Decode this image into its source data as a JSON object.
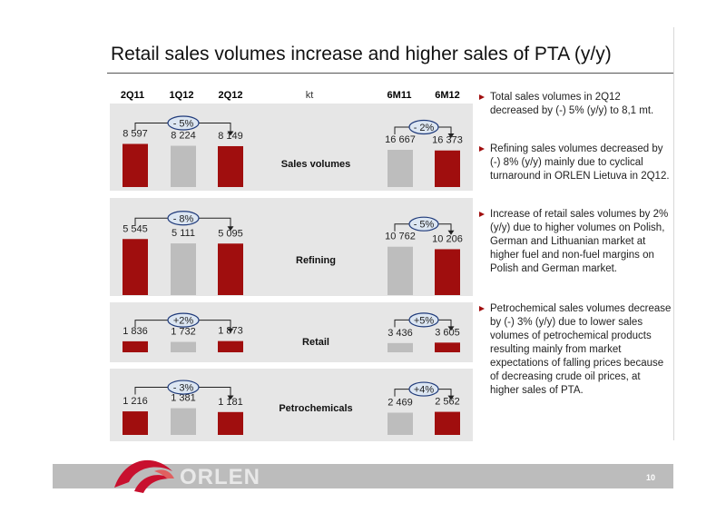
{
  "title": "Retail sales volumes increase and higher sales of PTA (y/y)",
  "page_number": "10",
  "logo_text": "ORLEN",
  "colors": {
    "prior_bar": "#a00e0e",
    "middle_bar": "#bdbdbd",
    "current_bar": "#a00e0e",
    "band": "#e6e6e6",
    "accent": "#a00e0e"
  },
  "bullets": [
    "Total sales volumes in 2Q12 decreased by (-) 5% (y/y) to 8,1 mt.",
    "Refining sales volumes decreased by (-) 8% (y/y) mainly due to cyclical turnaround in ORLEN Lietuva in 2Q12.",
    "Increase of retail sales volumes by 2% (y/y) due to higher volumes on Polish, German and Lithuanian market at higher fuel and non-fuel margins on Polish and German market.",
    "Petrochemical sales volumes decrease by (-) 3% (y/y) due to lower sales volumes of petrochemical products resulting mainly from market expectations of falling prices because of decreasing crude oil prices, at higher sales of PTA."
  ],
  "chart_data": {
    "type": "bar",
    "unit": "kt",
    "quarter_categories": [
      "2Q11",
      "1Q12",
      "2Q12"
    ],
    "halfyear_categories": [
      "6M11",
      "6M12"
    ],
    "panels": [
      {
        "name": "Sales volumes",
        "quarter_values": [
          8597,
          8224,
          8149
        ],
        "quarter_labels": [
          "8 597",
          "8 224",
          "8 149"
        ],
        "quarter_change": "- 5%",
        "halfyear_values": [
          16667,
          16373
        ],
        "halfyear_labels": [
          "16 667",
          "16 373"
        ],
        "halfyear_change": "- 2%"
      },
      {
        "name": "Refining",
        "quarter_values": [
          5545,
          5111,
          5095
        ],
        "quarter_labels": [
          "5 545",
          "5 111",
          "5 095"
        ],
        "quarter_change": "- 8%",
        "halfyear_values": [
          10762,
          10206
        ],
        "halfyear_labels": [
          "10 762",
          "10 206"
        ],
        "halfyear_change": "- 5%"
      },
      {
        "name": "Retail",
        "quarter_values": [
          1836,
          1732,
          1873
        ],
        "quarter_labels": [
          "1 836",
          "1 732",
          "1 873"
        ],
        "quarter_change": "+2%",
        "halfyear_values": [
          3436,
          3605
        ],
        "halfyear_labels": [
          "3 436",
          "3 605"
        ],
        "halfyear_change": "+5%"
      },
      {
        "name": "Petrochemicals",
        "quarter_values": [
          1216,
          1381,
          1181
        ],
        "quarter_labels": [
          "1 216",
          "1 381",
          "1 181"
        ],
        "quarter_change": "- 3%",
        "halfyear_values": [
          2469,
          2562
        ],
        "halfyear_labels": [
          "2 469",
          "2 562"
        ],
        "halfyear_change": "+4%"
      }
    ]
  }
}
